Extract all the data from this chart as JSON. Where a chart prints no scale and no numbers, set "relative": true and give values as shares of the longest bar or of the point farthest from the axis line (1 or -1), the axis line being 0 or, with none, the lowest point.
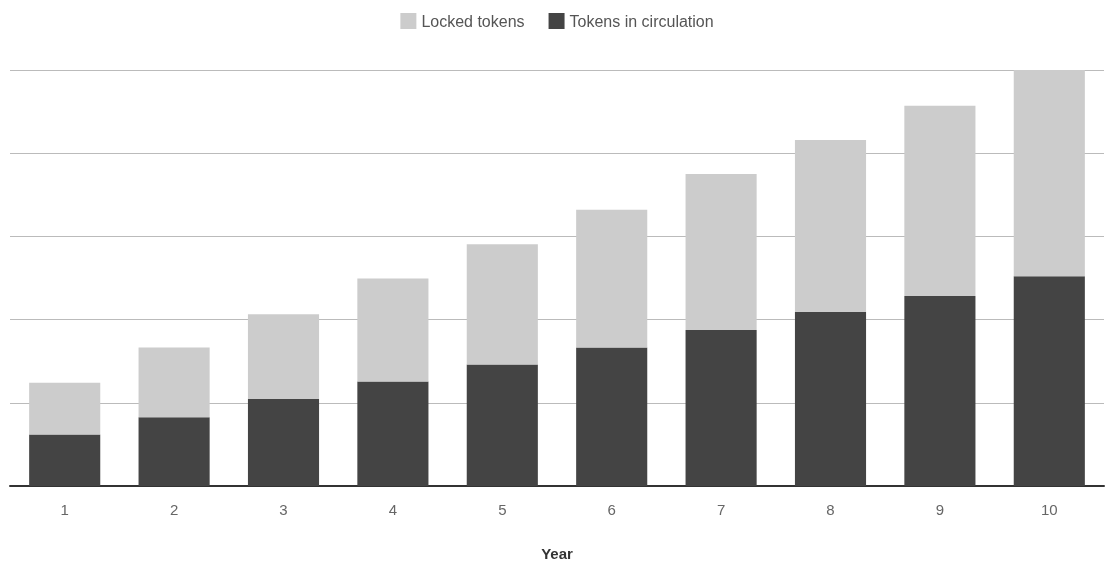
{
  "chart_data": {
    "type": "bar",
    "xlabel": "Year",
    "categories": [
      "1",
      "2",
      "3",
      "4",
      "5",
      "6",
      "7",
      "8",
      "9",
      "10"
    ],
    "stacked": true,
    "relative": true,
    "grid": "y",
    "legend": "top",
    "series": [
      {
        "name": "Tokens in circulation",
        "color": "#444444",
        "values": [
          0.124,
          0.165,
          0.209,
          0.251,
          0.292,
          0.333,
          0.375,
          0.419,
          0.457,
          0.504
        ]
      },
      {
        "name": "Locked tokens",
        "color": "#cccccc",
        "values": [
          0.124,
          0.168,
          0.204,
          0.248,
          0.289,
          0.331,
          0.375,
          0.413,
          0.457,
          0.496
        ]
      }
    ]
  }
}
